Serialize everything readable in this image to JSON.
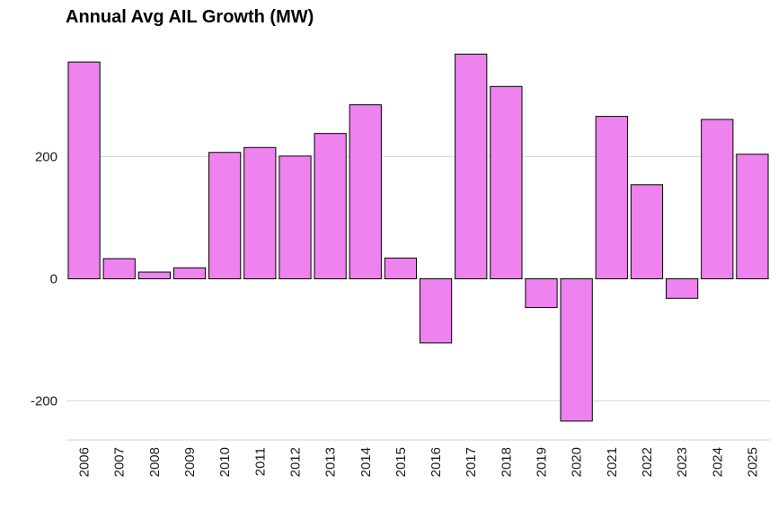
{
  "chart_data": {
    "type": "bar",
    "title": "Annual Avg AIL Growth (MW)",
    "xlabel": "",
    "ylabel": "",
    "categories": [
      "2006",
      "2007",
      "2008",
      "2009",
      "2010",
      "2011",
      "2012",
      "2013",
      "2014",
      "2015",
      "2016",
      "2017",
      "2018",
      "2019",
      "2020",
      "2021",
      "2022",
      "2023",
      "2024",
      "2025"
    ],
    "values": [
      355,
      33,
      11,
      18,
      207,
      215,
      201,
      238,
      285,
      34,
      -105,
      368,
      315,
      -47,
      -233,
      266,
      154,
      -32,
      261,
      204
    ],
    "yticks": [
      -200,
      0,
      200
    ],
    "ylim": [
      -262,
      380
    ],
    "grid": true,
    "legend": "none",
    "colors": {
      "bar_fill": "#EE82EE",
      "bar_stroke": "#000000",
      "grid": "#d9d9d9"
    }
  }
}
